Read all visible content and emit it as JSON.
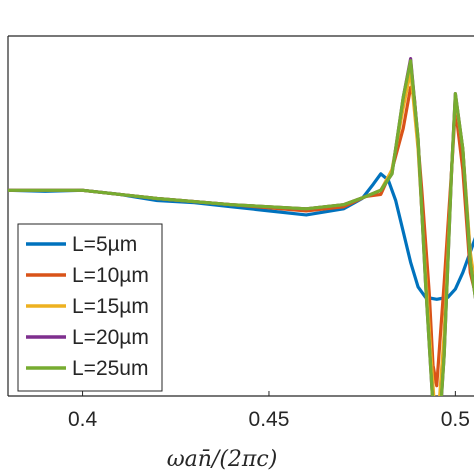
{
  "chart_data": {
    "type": "line",
    "xlabel": "ωan̄/(2πc)",
    "ylabel": "",
    "title": "",
    "xlim": [
      0.38,
      0.505
    ],
    "ylim": [
      -1.0,
      0.75
    ],
    "x_ticks": [
      {
        "value": 0.4,
        "label": "0.4"
      },
      {
        "value": 0.45,
        "label": "0.45"
      },
      {
        "value": 0.5,
        "label": "0.5"
      }
    ],
    "y_ticks": [
      0.0,
      -1.0
    ],
    "grid": false,
    "legend_position": "lower-left",
    "series": [
      {
        "name": "L=5µm",
        "color": "#0072BD",
        "points": [
          [
            0.38,
            0.0
          ],
          [
            0.39,
            -0.005
          ],
          [
            0.4,
            0.0
          ],
          [
            0.41,
            -0.02
          ],
          [
            0.42,
            -0.05
          ],
          [
            0.43,
            -0.06
          ],
          [
            0.44,
            -0.08
          ],
          [
            0.45,
            -0.1
          ],
          [
            0.46,
            -0.12
          ],
          [
            0.47,
            -0.09
          ],
          [
            0.475,
            -0.04
          ],
          [
            0.478,
            0.03
          ],
          [
            0.48,
            0.08
          ],
          [
            0.482,
            0.05
          ],
          [
            0.484,
            -0.05
          ],
          [
            0.486,
            -0.2
          ],
          [
            0.488,
            -0.35
          ],
          [
            0.49,
            -0.47
          ],
          [
            0.492,
            -0.52
          ],
          [
            0.495,
            -0.53
          ],
          [
            0.498,
            -0.52
          ],
          [
            0.5,
            -0.48
          ],
          [
            0.502,
            -0.4
          ],
          [
            0.505,
            -0.25
          ],
          [
            0.508,
            -0.1
          ],
          [
            0.511,
            0.0
          ],
          [
            0.514,
            -0.05
          ],
          [
            0.517,
            -0.15
          ],
          [
            0.519,
            -0.25
          ],
          [
            0.521,
            -0.25
          ],
          [
            0.523,
            -0.1
          ],
          [
            0.525,
            0.0
          ],
          [
            0.527,
            0.05
          ],
          [
            0.53,
            0.06
          ]
        ]
      },
      {
        "name": "L=10µm",
        "color": "#D95319",
        "points": [
          [
            0.38,
            0.0
          ],
          [
            0.4,
            0.0
          ],
          [
            0.42,
            -0.04
          ],
          [
            0.44,
            -0.07
          ],
          [
            0.46,
            -0.1
          ],
          [
            0.47,
            -0.08
          ],
          [
            0.476,
            -0.03
          ],
          [
            0.48,
            -0.02
          ],
          [
            0.483,
            0.1
          ],
          [
            0.486,
            0.3
          ],
          [
            0.488,
            0.5
          ],
          [
            0.489,
            0.45
          ],
          [
            0.491,
            0.0
          ],
          [
            0.493,
            -0.5
          ],
          [
            0.494,
            -0.85
          ],
          [
            0.495,
            -0.95
          ],
          [
            0.497,
            -0.45
          ],
          [
            0.499,
            0.1
          ],
          [
            0.5,
            0.4
          ],
          [
            0.502,
            0.1
          ],
          [
            0.504,
            -0.4
          ],
          [
            0.506,
            -0.55
          ],
          [
            0.508,
            -0.6
          ],
          [
            0.51,
            -0.3
          ],
          [
            0.512,
            0.2
          ],
          [
            0.513,
            0.35
          ],
          [
            0.515,
            0.05
          ],
          [
            0.517,
            -0.25
          ],
          [
            0.519,
            -0.3
          ],
          [
            0.521,
            -0.1
          ],
          [
            0.523,
            0.05
          ],
          [
            0.525,
            -0.05
          ],
          [
            0.527,
            -0.1
          ],
          [
            0.529,
            0.0
          ],
          [
            0.53,
            0.05
          ]
        ]
      },
      {
        "name": "L=15µm",
        "color": "#EDB120",
        "points": [
          [
            0.38,
            0.0
          ],
          [
            0.4,
            0.0
          ],
          [
            0.42,
            -0.04
          ],
          [
            0.44,
            -0.07
          ],
          [
            0.46,
            -0.09
          ],
          [
            0.47,
            -0.07
          ],
          [
            0.476,
            -0.03
          ],
          [
            0.48,
            0.0
          ],
          [
            0.483,
            0.1
          ],
          [
            0.486,
            0.4
          ],
          [
            0.488,
            0.58
          ],
          [
            0.49,
            0.2
          ],
          [
            0.492,
            -0.4
          ],
          [
            0.494,
            -0.95
          ],
          [
            0.495,
            -1.2
          ],
          [
            0.497,
            -0.7
          ],
          [
            0.499,
            0.1
          ],
          [
            0.5,
            0.45
          ],
          [
            0.502,
            0.2
          ],
          [
            0.504,
            -0.3
          ],
          [
            0.506,
            -0.55
          ],
          [
            0.508,
            -0.65
          ],
          [
            0.51,
            -0.35
          ],
          [
            0.512,
            0.25
          ],
          [
            0.513,
            0.4
          ],
          [
            0.515,
            0.1
          ],
          [
            0.517,
            -0.25
          ],
          [
            0.519,
            -0.35
          ],
          [
            0.521,
            -0.1
          ],
          [
            0.523,
            0.05
          ],
          [
            0.525,
            -0.05
          ],
          [
            0.527,
            -0.1
          ],
          [
            0.529,
            0.0
          ],
          [
            0.53,
            0.05
          ]
        ]
      },
      {
        "name": "L=20µm",
        "color": "#7E2F8E",
        "points": [
          [
            0.38,
            0.0
          ],
          [
            0.4,
            0.0
          ],
          [
            0.42,
            -0.04
          ],
          [
            0.44,
            -0.07
          ],
          [
            0.46,
            -0.09
          ],
          [
            0.47,
            -0.07
          ],
          [
            0.476,
            -0.03
          ],
          [
            0.48,
            0.0
          ],
          [
            0.483,
            0.08
          ],
          [
            0.486,
            0.45
          ],
          [
            0.488,
            0.64
          ],
          [
            0.49,
            0.25
          ],
          [
            0.492,
            -0.45
          ],
          [
            0.494,
            -1.05
          ],
          [
            0.495,
            -1.37
          ],
          [
            0.497,
            -0.8
          ],
          [
            0.499,
            0.1
          ],
          [
            0.5,
            0.47
          ],
          [
            0.502,
            0.2
          ],
          [
            0.504,
            -0.35
          ],
          [
            0.506,
            -0.6
          ],
          [
            0.508,
            -0.7
          ],
          [
            0.51,
            -0.35
          ],
          [
            0.512,
            0.25
          ],
          [
            0.513,
            0.41
          ],
          [
            0.515,
            0.1
          ],
          [
            0.517,
            -0.25
          ],
          [
            0.519,
            -0.35
          ],
          [
            0.521,
            -0.1
          ],
          [
            0.523,
            0.05
          ],
          [
            0.525,
            -0.05
          ],
          [
            0.527,
            -0.1
          ],
          [
            0.529,
            0.0
          ],
          [
            0.53,
            0.05
          ]
        ]
      },
      {
        "name": "L=25um",
        "color": "#77AC30",
        "points": [
          [
            0.38,
            0.0
          ],
          [
            0.4,
            0.0
          ],
          [
            0.42,
            -0.04
          ],
          [
            0.44,
            -0.07
          ],
          [
            0.46,
            -0.09
          ],
          [
            0.47,
            -0.07
          ],
          [
            0.476,
            -0.03
          ],
          [
            0.48,
            0.0
          ],
          [
            0.483,
            0.08
          ],
          [
            0.486,
            0.45
          ],
          [
            0.488,
            0.63
          ],
          [
            0.49,
            0.25
          ],
          [
            0.492,
            -0.45
          ],
          [
            0.494,
            -1.05
          ],
          [
            0.495,
            -1.35
          ],
          [
            0.497,
            -0.8
          ],
          [
            0.499,
            0.1
          ],
          [
            0.5,
            0.47
          ],
          [
            0.502,
            0.2
          ],
          [
            0.504,
            -0.35
          ],
          [
            0.506,
            -0.6
          ],
          [
            0.508,
            -0.7
          ],
          [
            0.51,
            -0.35
          ],
          [
            0.512,
            0.25
          ],
          [
            0.513,
            0.41
          ],
          [
            0.515,
            0.1
          ],
          [
            0.517,
            -0.25
          ],
          [
            0.519,
            -0.35
          ],
          [
            0.521,
            -0.1
          ],
          [
            0.523,
            0.05
          ],
          [
            0.525,
            -0.05
          ],
          [
            0.527,
            -0.1
          ],
          [
            0.529,
            0.0
          ],
          [
            0.53,
            0.05
          ]
        ]
      }
    ]
  }
}
